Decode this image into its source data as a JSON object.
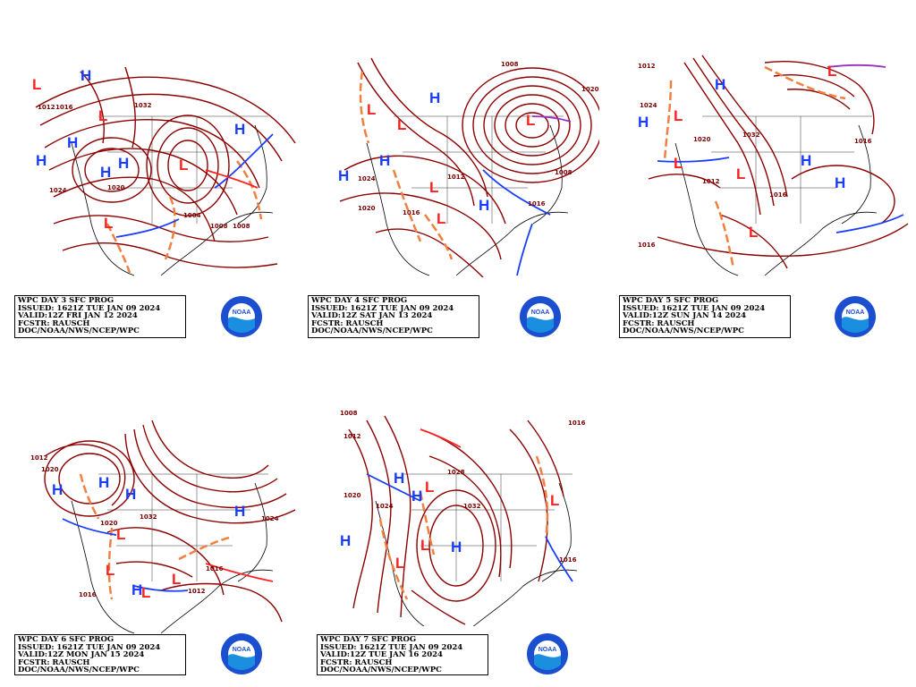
{
  "colors": {
    "isobar": "#8b0000",
    "high": "#1a3cff",
    "low": "#ff2020",
    "trough": "#f08040",
    "cold_front": "#1a3cff",
    "warm_front": "#ff2020",
    "occluded_front": "#9b30c0",
    "land_outline": "#000000"
  },
  "panels": [
    {
      "id": "day3",
      "info": {
        "line1": "WPC DAY 3 SFC PROG",
        "line2": "ISSUED: 1621Z TUE JAN 09 2024",
        "line3": "VALID:12Z FRI JAN 12 2024",
        "line4": "FCSTR: RAUSCH",
        "line5": "DOC/NOAA/NWS/NCEP/WPC"
      },
      "pressure_labels": [
        "1012",
        "1016",
        "1024",
        "1020",
        "1008",
        "1004",
        "1032",
        "1008"
      ],
      "centers": {
        "highs": [
          "H",
          "H",
          "H",
          "H",
          "H",
          "H"
        ],
        "lows": [
          "L",
          "L",
          "L",
          "L"
        ]
      }
    },
    {
      "id": "day4",
      "info": {
        "line1": "WPC DAY 4 SFC PROG",
        "line2": "ISSUED: 1621Z TUE JAN 09 2024",
        "line3": "VALID:12Z SAT JAN 13 2024",
        "line4": "FCSTR: RAUSCH",
        "line5": "DOC/NOAA/NWS/NCEP/WPC"
      },
      "pressure_labels": [
        "1008",
        "1020",
        "1024",
        "1016",
        "1012",
        "1008",
        "1016",
        "1020"
      ],
      "centers": {
        "highs": [
          "H",
          "H",
          "H",
          "H"
        ],
        "lows": [
          "L",
          "L",
          "L",
          "L",
          "L"
        ]
      }
    },
    {
      "id": "day5",
      "info": {
        "line1": "WPC DAY 5 SFC PROG",
        "line2": "ISSUED: 1621Z TUE JAN 09 2024",
        "line3": "VALID:12Z SUN JAN 14 2024",
        "line4": "FCSTR: RAUSCH",
        "line5": "DOC/NOAA/NWS/NCEP/WPC"
      },
      "pressure_labels": [
        "1012",
        "1024",
        "1020",
        "1012",
        "1032",
        "1016",
        "1016",
        "1016"
      ],
      "centers": {
        "highs": [
          "H",
          "H",
          "H",
          "H"
        ],
        "lows": [
          "L",
          "L",
          "L",
          "L",
          "L"
        ]
      }
    },
    {
      "id": "day6",
      "info": {
        "line1": "WPC DAY 6 SFC PROG",
        "line2": "ISSUED: 1621Z TUE JAN 09 2024",
        "line3": "VALID:12Z MON JAN 15 2024",
        "line4": "FCSTR: RAUSCH",
        "line5": "DOC/NOAA/NWS/NCEP/WPC"
      },
      "pressure_labels": [
        "1012",
        "1020",
        "1020",
        "1032",
        "1016",
        "1012",
        "1016",
        "1024"
      ],
      "centers": {
        "highs": [
          "H",
          "H",
          "H",
          "H",
          "H"
        ],
        "lows": [
          "L",
          "L",
          "L",
          "L"
        ]
      }
    },
    {
      "id": "day7",
      "info": {
        "line1": "WPC DAY 7 SFC PROG",
        "line2": "ISSUED: 1621Z TUE JAN 09 2024",
        "line3": "VALID:12Z TUE JAN 16 2024",
        "line4": "FCSTR: RAUSCH",
        "line5": "DOC/NOAA/NWS/NCEP/WPC"
      },
      "pressure_labels": [
        "1008",
        "1012",
        "1016",
        "1020",
        "1024",
        "1028",
        "1032",
        "1016"
      ],
      "centers": {
        "highs": [
          "H",
          "H",
          "H",
          "H"
        ],
        "lows": [
          "L",
          "L",
          "L",
          "L"
        ]
      }
    }
  ],
  "logo": {
    "text": "NOAA",
    "ring_text": "NATIONAL OCEANIC AND ATMOSPHERIC ADMINISTRATION"
  }
}
